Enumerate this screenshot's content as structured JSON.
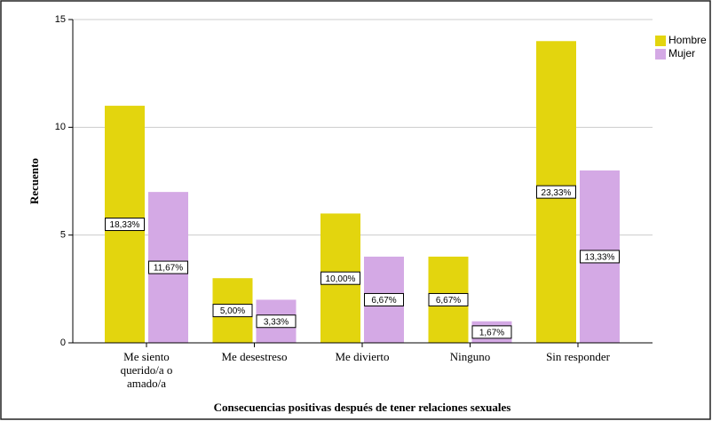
{
  "chart_data": {
    "type": "bar",
    "x_label": "Consecuencias positivas después de tener relaciones sexuales",
    "y_label": "Recuento",
    "categories": [
      "Me siento\nquerido/a o\namado/a",
      "Me desestreso",
      "Me divierto",
      "Ninguno",
      "Sin responder"
    ],
    "series": [
      {
        "name": "Hombre",
        "color": "#e3d50e",
        "values": [
          11,
          3,
          6,
          4,
          14
        ],
        "percentages": [
          18.33,
          5.0,
          10.0,
          6.67,
          23.33
        ],
        "percent_labels": [
          "18,33%",
          "5,00%",
          "10,00%",
          "6,67%",
          "23,33%"
        ]
      },
      {
        "name": "Mujer",
        "color": "#d4a9e5",
        "values": [
          7,
          2,
          4,
          1,
          8
        ],
        "percentages": [
          11.67,
          3.33,
          6.67,
          1.67,
          13.33
        ],
        "percent_labels": [
          "11,67%",
          "3,33%",
          "6,67%",
          "1,67%",
          "13,33%"
        ]
      }
    ],
    "ylim": [
      0,
      15
    ],
    "yticks": [
      0,
      5,
      10,
      15
    ],
    "grid": true,
    "legend": "top-right"
  }
}
